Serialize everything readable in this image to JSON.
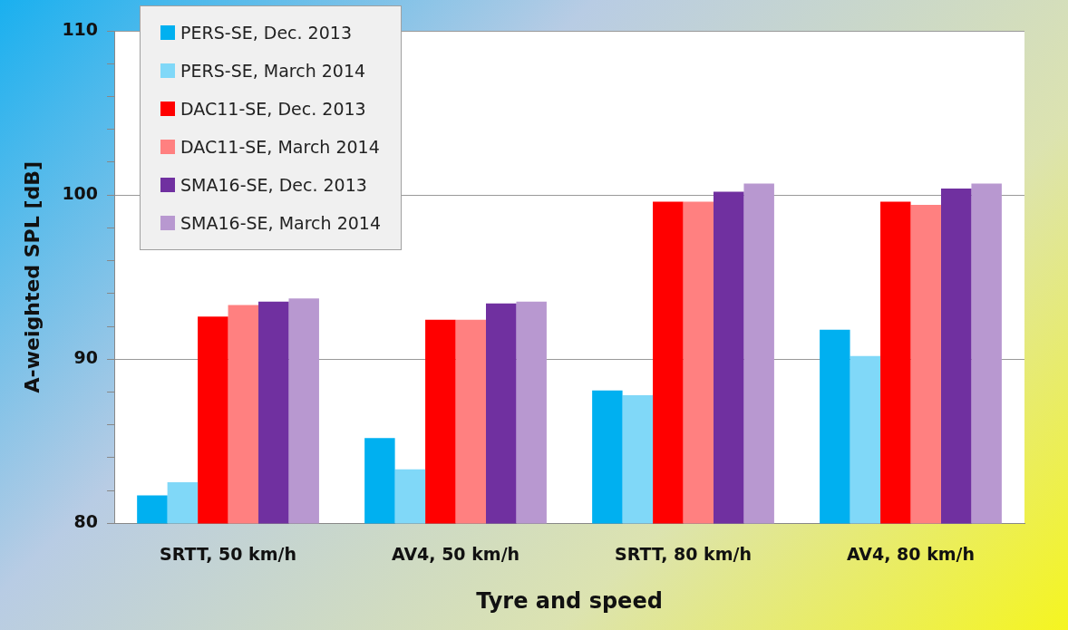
{
  "chart_data": {
    "type": "bar",
    "xlabel": "Tyre and speed",
    "ylabel": "A-weighted SPL [dB]",
    "categories": [
      "SRTT, 50 km/h",
      "AV4, 50 km/h",
      "SRTT, 80 km/h",
      "AV4, 80 km/h"
    ],
    "series": [
      {
        "name": "PERS-SE, Dec. 2013",
        "color": "#00b0f0",
        "values": [
          81.7,
          85.2,
          88.1,
          91.8
        ]
      },
      {
        "name": "PERS-SE, March 2014",
        "color": "#80d8f8",
        "values": [
          82.5,
          83.3,
          87.8,
          90.2
        ]
      },
      {
        "name": "DAC11-SE, Dec. 2013",
        "color": "#ff0000",
        "values": [
          92.6,
          92.4,
          99.6,
          99.6
        ]
      },
      {
        "name": "DAC11-SE, March 2014",
        "color": "#ff8080",
        "values": [
          93.3,
          92.4,
          99.6,
          99.4
        ]
      },
      {
        "name": "SMA16-SE, Dec. 2013",
        "color": "#7030a0",
        "values": [
          93.5,
          93.4,
          100.2,
          100.4
        ]
      },
      {
        "name": "SMA16-SE, March 2014",
        "color": "#b898d0",
        "values": [
          93.7,
          93.5,
          100.7,
          100.7
        ]
      }
    ],
    "ylim": [
      80,
      110
    ],
    "yticks": [
      80,
      {
        "value": 82,
        "label": null
      },
      {
        "value": 84,
        "label": null
      },
      {
        "value": 86,
        "label": null
      },
      {
        "value": 88,
        "label": null
      },
      90,
      {
        "value": 92,
        "label": null
      },
      {
        "value": 94,
        "label": null
      },
      {
        "value": 96,
        "label": null
      },
      {
        "value": 98,
        "label": null
      },
      100,
      {
        "value": 102,
        "label": null
      },
      {
        "value": 104,
        "label": null
      },
      {
        "value": 106,
        "label": null
      },
      {
        "value": 108,
        "label": null
      },
      110
    ],
    "grid": "y",
    "legend": "top left"
  }
}
